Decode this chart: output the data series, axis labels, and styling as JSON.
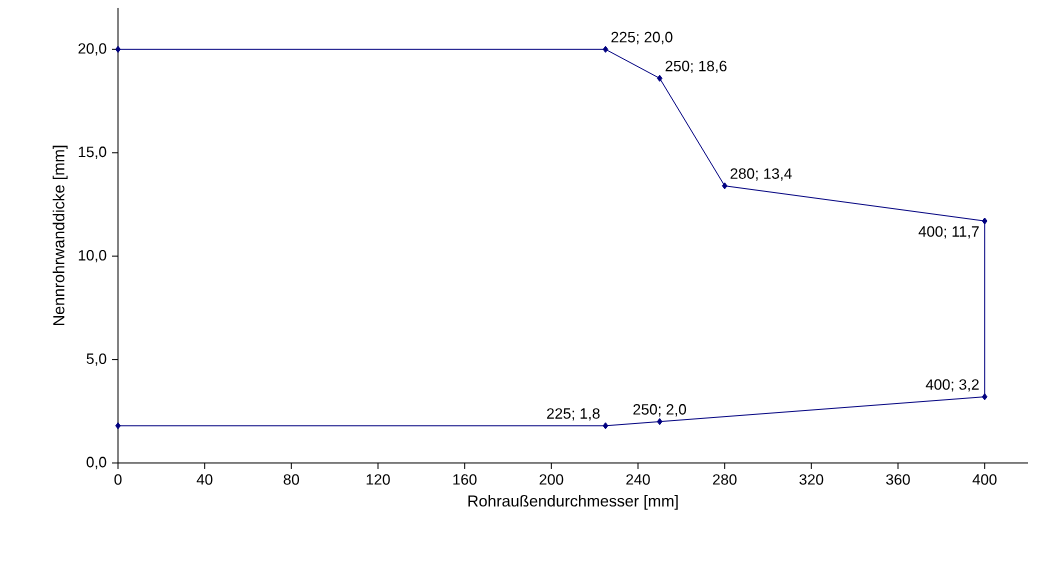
{
  "chart_data": {
    "type": "line",
    "xlabel": "Rohraußendurchmesser [mm]",
    "ylabel": "Nennrohrwanddicke [mm]",
    "x": [
      0,
      225,
      250,
      280,
      400,
      400,
      250,
      225,
      0
    ],
    "series": [
      {
        "color": "#000080",
        "values": [
          20.0,
          20.0,
          18.6,
          13.4,
          11.7,
          3.2,
          2.0,
          1.8,
          1.8
        ],
        "value_labels": [
          null,
          "225; 20,0",
          "250; 18,6",
          "280; 13,4",
          "400; 11,7",
          "400; 3,2",
          "250; 2,0",
          "225; 1,8",
          null
        ]
      }
    ],
    "xlim": [
      0,
      420
    ],
    "ylim": [
      0,
      22
    ],
    "xticks": [
      0,
      40,
      80,
      120,
      160,
      200,
      240,
      280,
      320,
      360,
      400
    ],
    "yticks": [
      {
        "value": 0,
        "label": "0,0"
      },
      {
        "value": 5,
        "label": "5,0"
      },
      {
        "value": 10,
        "label": "10,0"
      },
      {
        "value": 15,
        "label": "15,0"
      },
      {
        "value": 20,
        "label": "20,0"
      }
    ],
    "grid": false,
    "marker": "diamond",
    "line_style": "solid"
  }
}
